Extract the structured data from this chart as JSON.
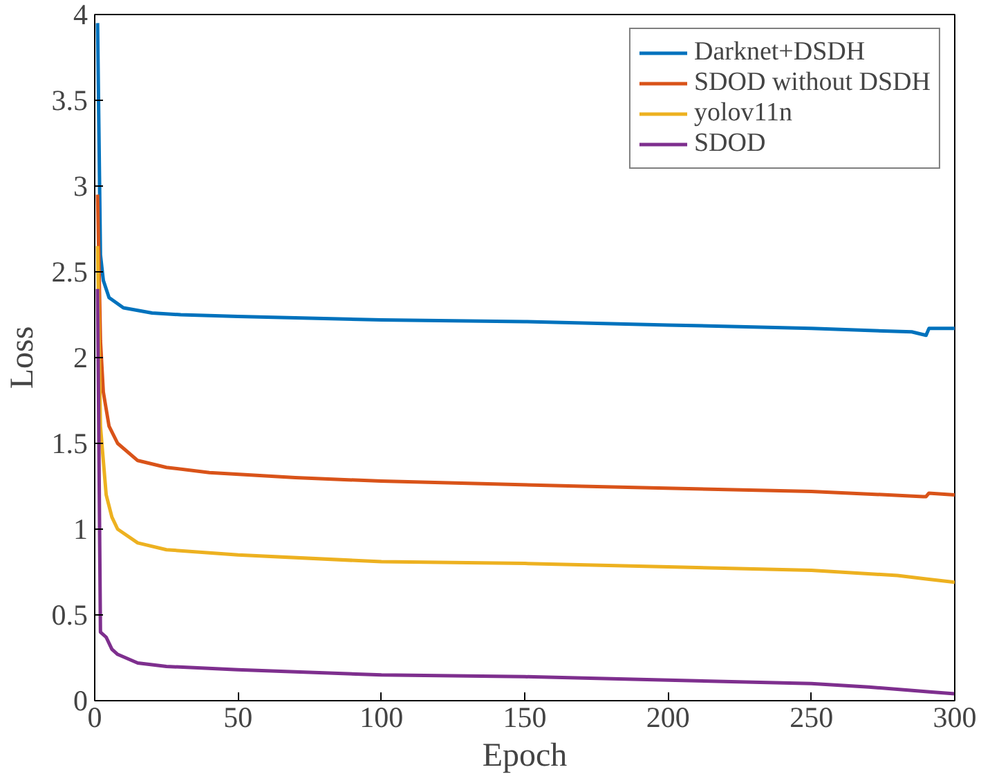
{
  "chart_data": {
    "type": "line",
    "xlabel": "Epoch",
    "ylabel": "Loss",
    "xlim": [
      0,
      300
    ],
    "ylim": [
      0,
      4
    ],
    "xticks": [
      0,
      50,
      100,
      150,
      200,
      250,
      300
    ],
    "yticks": [
      0,
      0.5,
      1,
      1.5,
      2,
      2.5,
      3,
      3.5,
      4
    ],
    "grid": false,
    "legend": "top right",
    "marker": "none",
    "line_style": "solid",
    "series": [
      {
        "name": "Darknet+DSDH",
        "color": "#0072bd",
        "x": [
          1,
          2,
          3,
          5,
          10,
          20,
          30,
          50,
          100,
          150,
          200,
          250,
          285,
          290,
          291,
          300
        ],
        "values": [
          3.95,
          2.6,
          2.45,
          2.35,
          2.29,
          2.26,
          2.25,
          2.24,
          2.22,
          2.21,
          2.19,
          2.17,
          2.15,
          2.13,
          2.17,
          2.17
        ]
      },
      {
        "name": "SDOD without DSDH",
        "color": "#d95319",
        "x": [
          1,
          2,
          3,
          5,
          8,
          15,
          25,
          40,
          70,
          100,
          170,
          250,
          289,
          290,
          291,
          300
        ],
        "values": [
          2.95,
          2.1,
          1.8,
          1.6,
          1.5,
          1.4,
          1.36,
          1.33,
          1.3,
          1.28,
          1.25,
          1.22,
          1.19,
          1.19,
          1.21,
          1.2
        ]
      },
      {
        "name": "yolov11n",
        "color": "#edb120",
        "x": [
          1,
          2,
          4,
          6,
          8,
          15,
          25,
          50,
          100,
          150,
          200,
          250,
          280,
          290,
          300
        ],
        "values": [
          2.65,
          1.6,
          1.2,
          1.07,
          1.0,
          0.92,
          0.88,
          0.85,
          0.81,
          0.8,
          0.78,
          0.76,
          0.73,
          0.71,
          0.69
        ]
      },
      {
        "name": "SDOD",
        "color": "#7e2f8e",
        "x": [
          1,
          2,
          4,
          6,
          8,
          15,
          25,
          50,
          100,
          150,
          200,
          250,
          270,
          292,
          300
        ],
        "values": [
          2.4,
          0.4,
          0.37,
          0.3,
          0.27,
          0.22,
          0.2,
          0.18,
          0.15,
          0.14,
          0.12,
          0.1,
          0.08,
          0.05,
          0.04
        ]
      }
    ]
  }
}
